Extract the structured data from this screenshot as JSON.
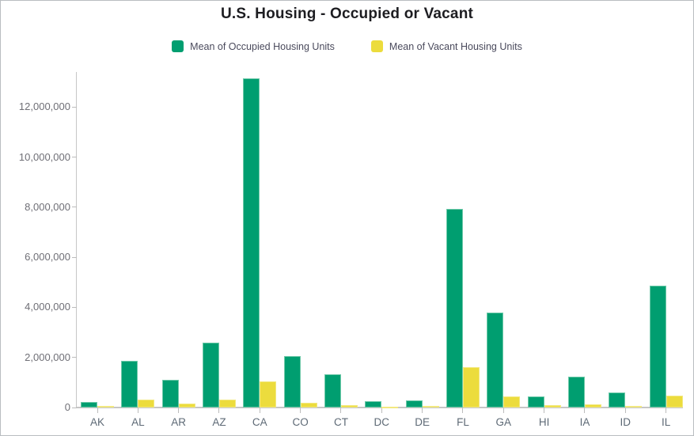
{
  "chart": {
    "title": "U.S. Housing - Occupied or Vacant",
    "legend": [
      {
        "label": "Mean of Occupied Housing Units",
        "color": "#009e70"
      },
      {
        "label": "Mean of Vacant Housing Units",
        "color": "#ecdc3d"
      }
    ]
  },
  "chart_data": {
    "type": "bar",
    "title": "U.S. Housing - Occupied or Vacant",
    "xlabel": "",
    "ylabel": "",
    "grid": false,
    "legend_position": "top",
    "ylim": [
      0,
      13400000
    ],
    "categories": [
      "AK",
      "AL",
      "AR",
      "AZ",
      "CA",
      "CO",
      "CT",
      "DC",
      "DE",
      "FL",
      "GA",
      "HI",
      "IA",
      "ID",
      "IL"
    ],
    "series": [
      {
        "name": "Mean of Occupied Housing Units",
        "color": "#009e70",
        "edge_color": "#6fc9a9",
        "values": [
          230000,
          1870000,
          1120000,
          2590000,
          13150000,
          2060000,
          1340000,
          250000,
          300000,
          7940000,
          3790000,
          440000,
          1230000,
          590000,
          4880000
        ]
      },
      {
        "name": "Mean of Vacant Housing Units",
        "color": "#ecdc3d",
        "edge_color": "#f2e87f",
        "values": [
          60000,
          320000,
          160000,
          320000,
          1030000,
          180000,
          110000,
          30000,
          70000,
          1600000,
          450000,
          80000,
          120000,
          50000,
          470000
        ]
      }
    ],
    "y_tick_values": [
      0,
      2000000,
      4000000,
      6000000,
      8000000,
      10000000,
      12000000
    ],
    "y_tick_labels": [
      "0",
      "2,000,000",
      "4,000,000",
      "6,000,000",
      "8,000,000",
      "10,000,000",
      "12,000,000"
    ]
  }
}
